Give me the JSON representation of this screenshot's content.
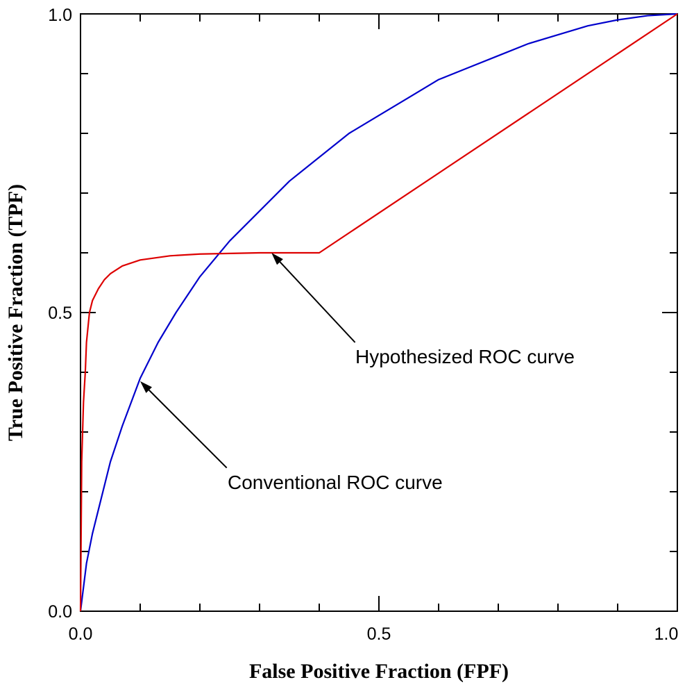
{
  "chart_data": {
    "type": "line",
    "xlabel": "False Positive Fraction (FPF)",
    "ylabel": "True Positive Fraction (TPF)",
    "xlim": [
      0,
      1
    ],
    "ylim": [
      0,
      1
    ],
    "x_ticks": [
      0,
      0.5,
      1
    ],
    "x_tick_labels": [
      "0.0",
      "0.5",
      "1.0"
    ],
    "y_ticks": [
      0,
      0.5,
      1
    ],
    "y_tick_labels": [
      "0.0",
      "0.5",
      "1.0"
    ],
    "minor_tick_step": 0.1,
    "grid": false,
    "series": [
      {
        "color": "#0000cc",
        "x": [
          0,
          0.01,
          0.02,
          0.03,
          0.05,
          0.07,
          0.1,
          0.13,
          0.16,
          0.2,
          0.25,
          0.3,
          0.35,
          0.4,
          0.45,
          0.5,
          0.55,
          0.6,
          0.65,
          0.7,
          0.75,
          0.8,
          0.85,
          0.9,
          0.95,
          1.0
        ],
        "y": [
          0,
          0.08,
          0.13,
          0.17,
          0.25,
          0.31,
          0.39,
          0.45,
          0.5,
          0.56,
          0.62,
          0.67,
          0.72,
          0.76,
          0.8,
          0.83,
          0.86,
          0.89,
          0.91,
          0.93,
          0.95,
          0.965,
          0.98,
          0.99,
          0.997,
          1.0
        ]
      },
      {
        "color": "#dd0000",
        "x": [
          0,
          0.002,
          0.005,
          0.008,
          0.01,
          0.015,
          0.02,
          0.03,
          0.04,
          0.05,
          0.07,
          0.1,
          0.15,
          0.2,
          0.3,
          0.4,
          1.0
        ],
        "y": [
          0,
          0.25,
          0.35,
          0.4,
          0.45,
          0.5,
          0.52,
          0.54,
          0.555,
          0.565,
          0.578,
          0.588,
          0.595,
          0.598,
          0.6,
          0.6,
          1.0
        ]
      }
    ],
    "annotations": [
      {
        "text": "Hypothesized ROC curve",
        "arrow_to": [
          0.32,
          0.6
        ],
        "arrow_from": [
          0.46,
          0.45
        ]
      },
      {
        "text": "Conventional ROC curve",
        "arrow_to": [
          0.1,
          0.385
        ],
        "arrow_from": [
          0.245,
          0.24
        ]
      }
    ]
  }
}
